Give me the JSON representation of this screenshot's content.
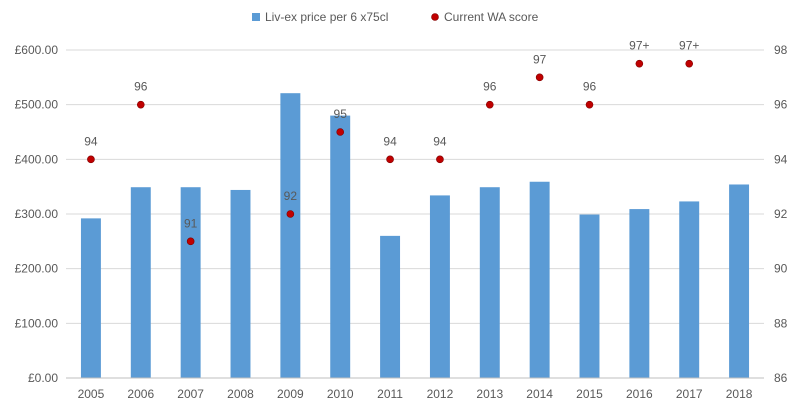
{
  "chart_data": {
    "type": "bar",
    "categories": [
      "2005",
      "2006",
      "2007",
      "2008",
      "2009",
      "2010",
      "2011",
      "2012",
      "2013",
      "2014",
      "2015",
      "2016",
      "2017",
      "2018"
    ],
    "series": [
      {
        "name": "Liv-ex price per 6 x75cl",
        "type": "bar",
        "axis": "left",
        "color": "#5b9bd5",
        "values": [
          292,
          349,
          349,
          344,
          521,
          480,
          260,
          334,
          349,
          359,
          299,
          309,
          323,
          354
        ]
      },
      {
        "name": "Current WA score",
        "type": "scatter",
        "axis": "right",
        "color": "#c00000",
        "values": [
          94,
          96,
          91,
          null,
          92,
          95,
          94,
          94,
          96,
          97,
          96,
          97.5,
          97.5,
          null
        ],
        "labels": [
          "94",
          "96",
          "91",
          "",
          "92",
          "95",
          "94",
          "94",
          "96",
          "97",
          "96",
          "97+",
          "97+",
          ""
        ]
      }
    ],
    "y_left": {
      "ylim": [
        0,
        600
      ],
      "ticks": [
        0,
        100,
        200,
        300,
        400,
        500,
        600
      ],
      "tick_labels": [
        "£0.00",
        "£100.00",
        "£200.00",
        "£300.00",
        "£400.00",
        "£500.00",
        "£600.00"
      ]
    },
    "y_right": {
      "ylim": [
        86,
        98
      ],
      "ticks": [
        86,
        88,
        90,
        92,
        94,
        96,
        98
      ],
      "tick_labels": [
        "86",
        "88",
        "90",
        "92",
        "94",
        "96",
        "98"
      ]
    },
    "grid": true,
    "legend": "top-center",
    "title": "",
    "xlabel": "",
    "ylabel": ""
  }
}
